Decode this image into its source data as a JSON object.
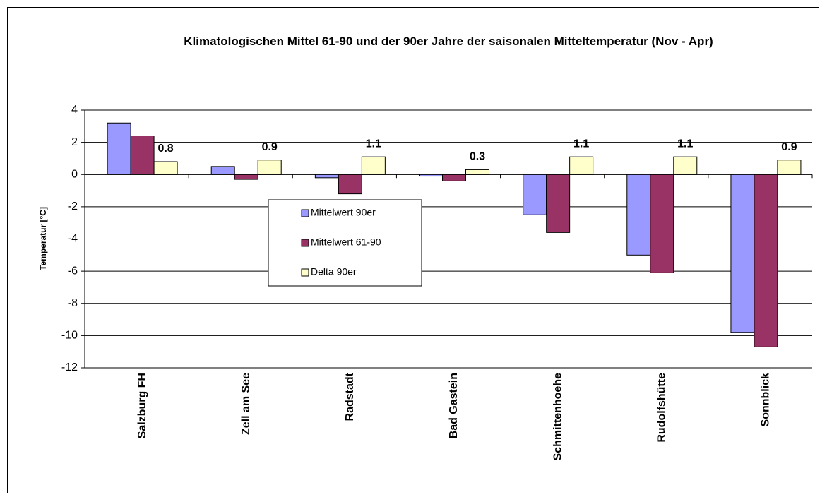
{
  "chart_data": {
    "type": "bar",
    "title": "Klimatologischen Mittel 61-90 und der 90er Jahre der saisonalen Mitteltemperatur (Nov - Apr)",
    "y_label": "Temperatur [°C]",
    "categories": [
      "Salzburg FH",
      "Zell am See",
      "Radstadt",
      "Bad Gastein",
      "Schmittenhoehe",
      "Rudolfshütte",
      "Sonnblick"
    ],
    "series": [
      {
        "name": "Mittelwert 90er",
        "color": "#9999ff",
        "values": [
          3.2,
          0.5,
          -0.2,
          -0.1,
          -2.5,
          -5.0,
          -9.8
        ]
      },
      {
        "name": "Mittelwert 61-90",
        "color": "#993366",
        "values": [
          2.4,
          -0.3,
          -1.2,
          -0.4,
          -3.6,
          -6.1,
          -10.7
        ]
      },
      {
        "name": "Delta 90er",
        "color": "#ffffcc",
        "values": [
          0.8,
          0.9,
          1.1,
          0.3,
          1.1,
          1.1,
          0.9
        ],
        "data_labels": true
      }
    ],
    "ylim": [
      -12,
      4
    ],
    "yticks": [
      -12,
      -10,
      -8,
      -6,
      -4,
      -2,
      0,
      2,
      4
    ],
    "grid": true
  }
}
